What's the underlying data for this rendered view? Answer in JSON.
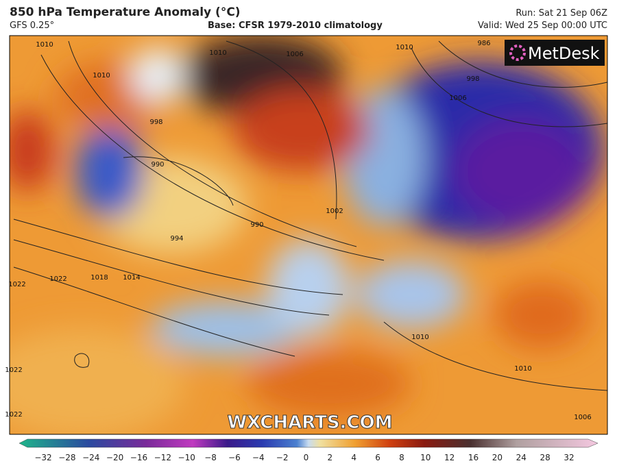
{
  "header": {
    "title": "850 hPa Temperature Anomaly (°C)",
    "model": "GFS 0.25°",
    "base": "Base: CFSR 1979-2010 climatology",
    "run": "Run: Sat 21 Sep 06Z",
    "valid": "Valid: Wed 25 Sep 00:00 UTC"
  },
  "map": {
    "contour_labels": [
      "1010",
      "1010",
      "1010",
      "1006",
      "986",
      "998",
      "1006",
      "998",
      "990",
      "990",
      "994",
      "1002",
      "1014",
      "1018",
      "1022",
      "1022",
      "1022",
      "1022",
      "1010",
      "1010",
      "1006",
      "1010"
    ]
  },
  "logo": "MetDesk",
  "watermark": "WXCHARTS.COM",
  "colorbar": {
    "labels": [
      "−32",
      "−28",
      "−24",
      "−20",
      "−16",
      "−12",
      "−10",
      "−8",
      "−6",
      "−4",
      "−2",
      "0",
      "2",
      "4",
      "6",
      "8",
      "10",
      "12",
      "16",
      "20",
      "24",
      "28",
      "32"
    ]
  }
}
